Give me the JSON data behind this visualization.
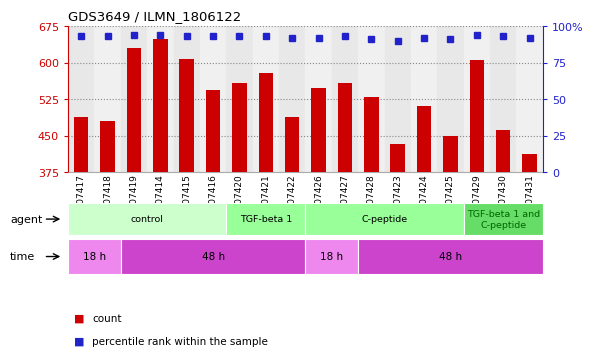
{
  "title": "GDS3649 / ILMN_1806122",
  "samples": [
    "GSM507417",
    "GSM507418",
    "GSM507419",
    "GSM507414",
    "GSM507415",
    "GSM507416",
    "GSM507420",
    "GSM507421",
    "GSM507422",
    "GSM507426",
    "GSM507427",
    "GSM507428",
    "GSM507423",
    "GSM507424",
    "GSM507425",
    "GSM507429",
    "GSM507430",
    "GSM507431"
  ],
  "counts": [
    489,
    479,
    630,
    648,
    607,
    543,
    558,
    578,
    488,
    548,
    558,
    530,
    432,
    510,
    450,
    605,
    462,
    413
  ],
  "percentile_ranks": [
    93,
    93,
    94,
    94,
    93,
    93,
    93,
    93,
    92,
    92,
    93,
    91,
    90,
    92,
    91,
    94,
    93,
    92
  ],
  "ylim_left": [
    375,
    675
  ],
  "ylim_right": [
    0,
    100
  ],
  "yticks_left": [
    375,
    450,
    525,
    600,
    675
  ],
  "yticks_right": [
    0,
    25,
    50,
    75,
    100
  ],
  "bar_color": "#cc0000",
  "dot_color": "#2222cc",
  "agent_groups": [
    {
      "label": "control",
      "start": 0,
      "end": 6,
      "color": "#ccffcc"
    },
    {
      "label": "TGF-beta 1",
      "start": 6,
      "end": 9,
      "color": "#99ff99"
    },
    {
      "label": "C-peptide",
      "start": 9,
      "end": 15,
      "color": "#99ff99"
    },
    {
      "label": "TGF-beta 1 and\nC-peptide",
      "start": 15,
      "end": 18,
      "color": "#66dd66"
    }
  ],
  "time_groups": [
    {
      "label": "18 h",
      "start": 0,
      "end": 2,
      "color": "#ee88ee"
    },
    {
      "label": "48 h",
      "start": 2,
      "end": 9,
      "color": "#cc44cc"
    },
    {
      "label": "18 h",
      "start": 9,
      "end": 11,
      "color": "#ee88ee"
    },
    {
      "label": "48 h",
      "start": 11,
      "end": 18,
      "color": "#cc44cc"
    }
  ],
  "agent_label": "agent",
  "time_label": "time",
  "legend_count_label": "count",
  "legend_pct_label": "percentile rank within the sample",
  "grid_color": "#888888",
  "background_color": "#ffffff",
  "plot_bg_color": "#ffffff",
  "col_bg_even": "#e8e8e8",
  "col_bg_odd": "#f0f0f0"
}
